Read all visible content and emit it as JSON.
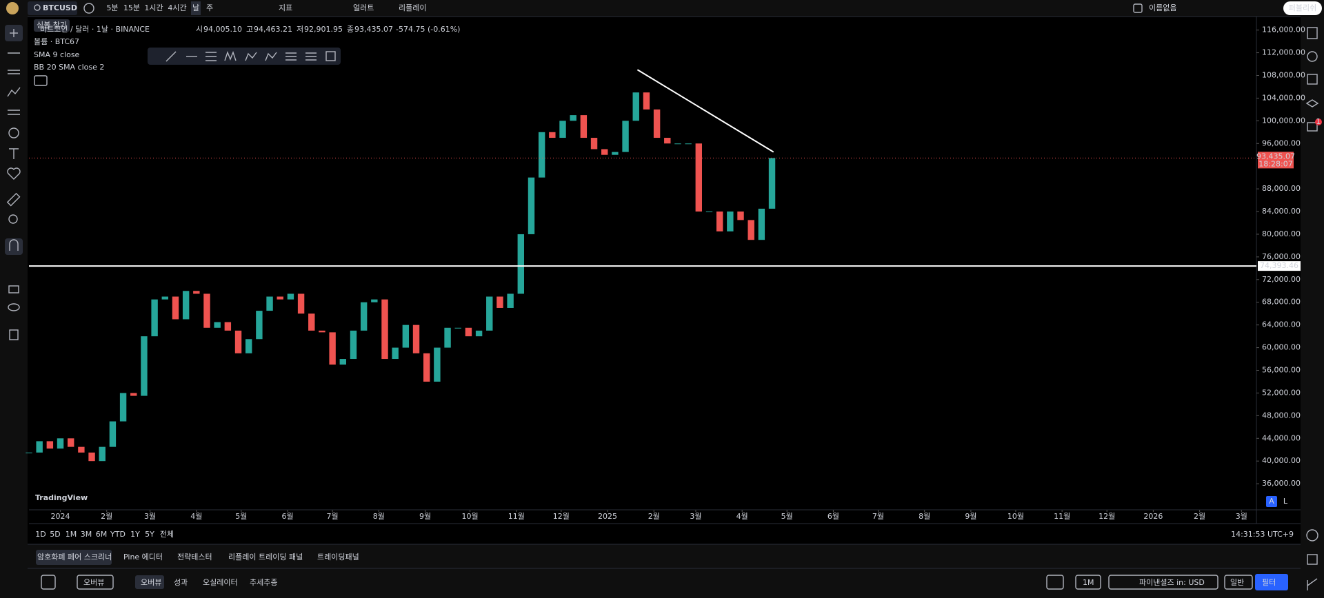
{
  "toolbar": {
    "symbol": "BTCUSD",
    "intervals": [
      "5분",
      "15분",
      "1시간",
      "4시간",
      "날",
      "주"
    ],
    "indicators": "지표",
    "alert": "얼러트",
    "replay": "리플레이",
    "layout": "이름없음",
    "publish": "퍼블리쉬"
  },
  "tooltip": "심볼 찾기",
  "legend": {
    "title": "비트코인 / 달러 · 1날 · BINANCE",
    "ohlc": [
      {
        "label": "시",
        "value": "94,005.10"
      },
      {
        "label": "고",
        "value": "94,463.21"
      },
      {
        "label": "저",
        "value": "92,901.95"
      },
      {
        "label": "종",
        "value": "93,435.07"
      }
    ],
    "change": "-574.75 (-0.61%)",
    "volume_label": "볼륨 · BTC",
    "volume_value": "67",
    "indicators": [
      "SMA 9 close",
      "BB 20 SMA close 2"
    ]
  },
  "chart_data": {
    "type": "candlestick",
    "x": [
      -21,
      -14,
      -7,
      0,
      7,
      14,
      21,
      28,
      35,
      42,
      49,
      56,
      63,
      70,
      77,
      84,
      91,
      98,
      105,
      112,
      119,
      126,
      133,
      140,
      147,
      154,
      161,
      168,
      175,
      182,
      189,
      196,
      203,
      210,
      217,
      224,
      231,
      238,
      245,
      252,
      259,
      266,
      273,
      280,
      287,
      294,
      301,
      308,
      315,
      322,
      329,
      336,
      343,
      350,
      357,
      364,
      371,
      378,
      385,
      392,
      399,
      406,
      413,
      420,
      427,
      434,
      441,
      448,
      455,
      462,
      469,
      476
    ],
    "values": [
      41500,
      43500,
      42200,
      44000,
      42500,
      41500,
      40000,
      42500,
      47000,
      52000,
      51500,
      62000,
      68500,
      69000,
      65000,
      70000,
      69500,
      63500,
      64500,
      63000,
      59000,
      61500,
      66500,
      69000,
      68500,
      69500,
      66000,
      63000,
      62700,
      57000,
      58000,
      63000,
      68000,
      68500,
      58000,
      60000,
      64000,
      59000,
      54000,
      60000,
      63500,
      63500,
      62000,
      63000,
      69000,
      67000,
      69500,
      80000,
      90000,
      98000,
      97000,
      100000,
      101000,
      97000,
      95000,
      94000,
      94500,
      100000,
      105000,
      102000,
      97000,
      96000,
      96000,
      96000,
      84000,
      84000,
      80500,
      84000,
      82500,
      79000,
      84500,
      93435
    ],
    "xlim": [
      -21,
      800
    ],
    "ylim": [
      31400,
      117900
    ],
    "xticks": [
      {
        "value": 0,
        "label": "2024"
      },
      {
        "value": 31,
        "label": "2월"
      },
      {
        "value": 60,
        "label": "3월"
      },
      {
        "value": 91,
        "label": "4월"
      },
      {
        "value": 121,
        "label": "5월"
      },
      {
        "value": 152,
        "label": "6월"
      },
      {
        "value": 182,
        "label": "7월"
      },
      {
        "value": 213,
        "label": "8월"
      },
      {
        "value": 244,
        "label": "9월"
      },
      {
        "value": 274,
        "label": "10월"
      },
      {
        "value": 305,
        "label": "11월"
      },
      {
        "value": 335,
        "label": "12월"
      },
      {
        "value": 366,
        "label": "2025"
      },
      {
        "value": 397,
        "label": "2월"
      },
      {
        "value": 425,
        "label": "3월"
      },
      {
        "value": 456,
        "label": "4월"
      },
      {
        "value": 486,
        "label": "5월"
      },
      {
        "value": 517,
        "label": "6월"
      },
      {
        "value": 547,
        "label": "7월"
      },
      {
        "value": 578,
        "label": "8월"
      },
      {
        "value": 609,
        "label": "9월"
      },
      {
        "value": 639,
        "label": "10월"
      },
      {
        "value": 670,
        "label": "11월"
      },
      {
        "value": 700,
        "label": "12월"
      },
      {
        "value": 731,
        "label": "2026"
      },
      {
        "value": 762,
        "label": "2월"
      },
      {
        "value": 790,
        "label": "3월"
      }
    ],
    "yticks": [
      {
        "value": 36000,
        "label": "36,000.00"
      },
      {
        "value": 40000,
        "label": "40,000.00"
      },
      {
        "value": 44000,
        "label": "44,000.00"
      },
      {
        "value": 48000,
        "label": "48,000.00"
      },
      {
        "value": 52000,
        "label": "52,000.00"
      },
      {
        "value": 56000,
        "label": "56,000.00"
      },
      {
        "value": 60000,
        "label": "60,000.00"
      },
      {
        "value": 64000,
        "label": "64,000.00"
      },
      {
        "value": 68000,
        "label": "68,000.00"
      },
      {
        "value": 72000,
        "label": "72,000.00"
      },
      {
        "value": 76000,
        "label": "76,000.00"
      },
      {
        "value": 80000,
        "label": "80,000.00"
      },
      {
        "value": 84000,
        "label": "84,000.00"
      },
      {
        "value": 88000,
        "label": "88,000.00"
      },
      {
        "value": 96000,
        "label": "96,000.00"
      },
      {
        "value": 100000,
        "label": "100,000.00"
      },
      {
        "value": 104000,
        "label": "104,000.00"
      },
      {
        "value": 108000,
        "label": "108,000.00"
      },
      {
        "value": 112000,
        "label": "112,000.00"
      },
      {
        "value": 116000,
        "label": "116,000.00"
      }
    ],
    "up_color": "#26a69a",
    "down_color": "#ef5350",
    "last_price": {
      "value": 93435.07,
      "label": "93,435.07",
      "countdown": "18:28:07"
    },
    "hline": {
      "value": 74393.46,
      "label": "74,393.46"
    },
    "trendline": {
      "x": [
        386,
        477
      ],
      "y": [
        109000,
        94500
      ]
    }
  },
  "logo": "TradingView",
  "scale_buttons": [
    "A",
    "L"
  ],
  "range_buttons": [
    "1D",
    "5D",
    "1M",
    "3M",
    "6M",
    "YTD",
    "1Y",
    "5Y",
    "전체"
  ],
  "clock": "14:31:53 UTC+9",
  "bottom_tabs": [
    "암호화폐 페어 스크리너",
    "Pine 에디터",
    "전략테스터",
    "리플레이 트레이딩 패널",
    "트레이딩패널"
  ],
  "screener": {
    "view": "오버뷰",
    "tabs": [
      "오버뷰",
      "성과",
      "오실레이터",
      "추세추종"
    ],
    "timeframe": "1M",
    "search": "파이낸셜즈 in: USD",
    "mode": "일반",
    "filter": "필터"
  },
  "badge": "1"
}
